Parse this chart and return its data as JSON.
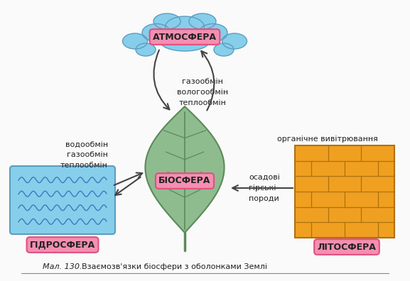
{
  "title_italic": "Мал. 130.",
  "title_normal": "  Взаємозв'язки біосфери з оболонками Землі",
  "bg_color": "#fafafa",
  "label_biosfera": "БІОСФЕРА",
  "label_atmosfera": "АТМОСФЕРА",
  "label_gidrosfera": "ГІДРОСФЕРА",
  "label_litosfera": "ЛІТОСФЕРА",
  "label_box_color": "#f48fb1",
  "label_box_edge": "#e05080",
  "atm_text": "газообмін\nвологообмін\nтеплообмін",
  "gid_text": "водообмін\nгазообмін\nтеплообмін",
  "lit_top_text": "органічне вивітрювання",
  "lit_bot_text": "осадові\nгірські\nпороди",
  "leaf_color": "#8fbc8f",
  "leaf_edge": "#5a8a5a",
  "cloud_color": "#87ceeb",
  "cloud_edge": "#5b9dbf",
  "water_color": "#87ceeb",
  "water_edge": "#5b9dbf",
  "water_wave_color": "#3a7abf",
  "brick_color": "#f0a020",
  "brick_edge": "#b07010",
  "arrow_color": "#444444",
  "text_color": "#222222",
  "caption_line_color": "#888888"
}
